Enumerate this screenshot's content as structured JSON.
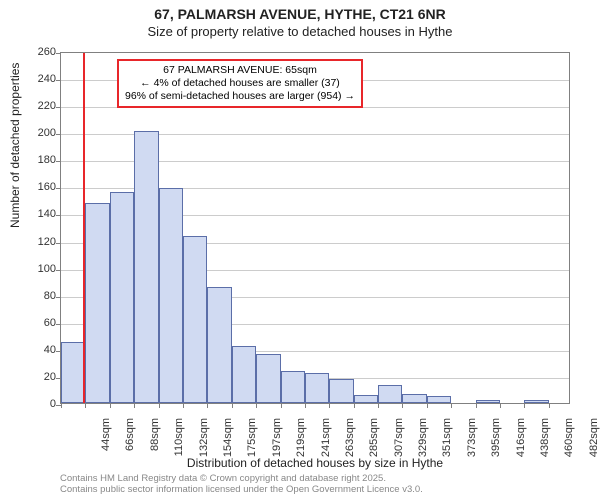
{
  "title": {
    "line1": "67, PALMARSH AVENUE, HYTHE, CT21 6NR",
    "line2": "Size of property relative to detached houses in Hythe"
  },
  "chart": {
    "type": "histogram",
    "background_color": "#ffffff",
    "grid_color": "#cccccc",
    "axis_color": "#808080",
    "bar_fill": "#d0daf2",
    "bar_border": "#5b6ea8",
    "y": {
      "title": "Number of detached properties",
      "min": 0,
      "max": 260,
      "tick_step": 20,
      "ticks": [
        0,
        20,
        40,
        60,
        80,
        100,
        120,
        140,
        160,
        180,
        200,
        220,
        240,
        260
      ]
    },
    "x": {
      "title": "Distribution of detached houses by size in Hythe",
      "tick_labels": [
        "44sqm",
        "66sqm",
        "88sqm",
        "110sqm",
        "132sqm",
        "154sqm",
        "175sqm",
        "197sqm",
        "219sqm",
        "241sqm",
        "263sqm",
        "285sqm",
        "307sqm",
        "329sqm",
        "351sqm",
        "373sqm",
        "395sqm",
        "416sqm",
        "438sqm",
        "460sqm",
        "482sqm"
      ],
      "min": 44,
      "max": 504,
      "bin_width": 22
    },
    "values": [
      45,
      148,
      156,
      201,
      159,
      123,
      86,
      42,
      36,
      24,
      22,
      18,
      6,
      13,
      7,
      5,
      0,
      2,
      0,
      2,
      0
    ],
    "marker": {
      "x_value": 65,
      "color": "#e8262a"
    },
    "callout": {
      "border_color": "#e8262a",
      "line1": "67 PALMARSH AVENUE: 65sqm",
      "line2": "← 4% of detached houses are smaller (37)",
      "line3": "96% of semi-detached houses are larger (954) →"
    }
  },
  "attribution": {
    "line1": "Contains HM Land Registry data © Crown copyright and database right 2025.",
    "line2": "Contains public sector information licensed under the Open Government Licence v3.0."
  },
  "fonts": {
    "title": 14,
    "subtitle": 13,
    "axis_title": 12,
    "tick": 11,
    "callout": 10.5,
    "attribution": 9.5
  }
}
